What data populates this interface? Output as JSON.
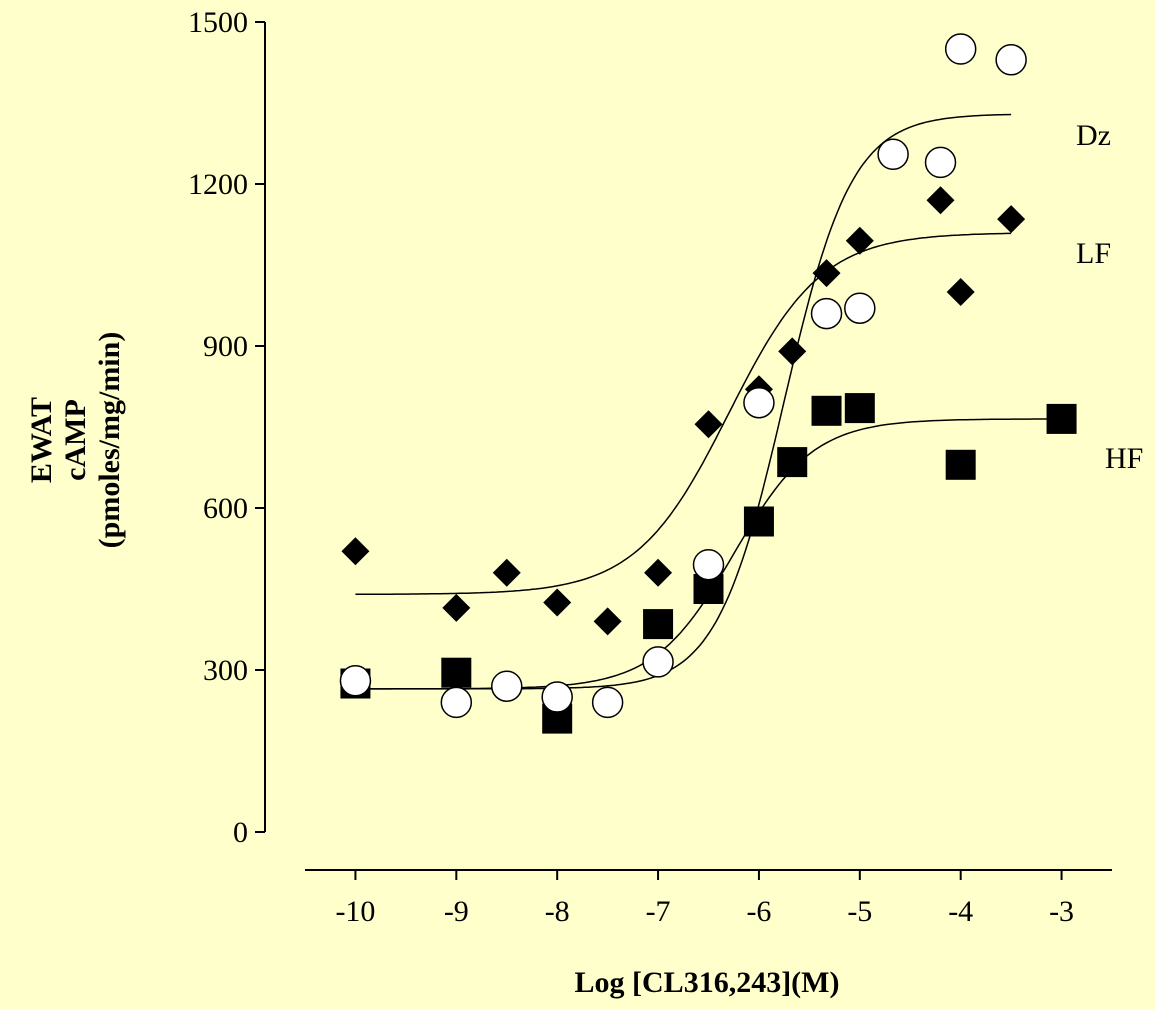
{
  "chart_data": {
    "type": "scatter",
    "title": "",
    "xlabel": "Log [CL316,243](M)",
    "ylabel_lines": [
      "EWAT",
      "cAMP",
      "(pmoles/mg/min)"
    ],
    "xlim": [
      -10.5,
      -2.5
    ],
    "ylim": [
      0,
      1500
    ],
    "xticks": [
      -10,
      -9,
      -8,
      -7,
      -6,
      -5,
      -4,
      -3
    ],
    "yticks": [
      0,
      300,
      600,
      900,
      1200,
      1500
    ],
    "grid": false,
    "legend": "none",
    "series": [
      {
        "name": "Dz",
        "marker": "circle",
        "points": [
          {
            "x": -10,
            "y": 280
          },
          {
            "x": -9,
            "y": 240
          },
          {
            "x": -8.5,
            "y": 270
          },
          {
            "x": -8,
            "y": 250
          },
          {
            "x": -7.5,
            "y": 240
          },
          {
            "x": -7,
            "y": 315
          },
          {
            "x": -6.5,
            "y": 495
          },
          {
            "x": -6,
            "y": 795
          },
          {
            "x": -5.33,
            "y": 960
          },
          {
            "x": -5,
            "y": 970
          },
          {
            "x": -4.67,
            "y": 1255
          },
          {
            "x": -4.2,
            "y": 1240
          },
          {
            "x": -4,
            "y": 1450
          },
          {
            "x": -3.5,
            "y": 1430
          }
        ],
        "fit": {
          "bottom": 265,
          "top": 1330,
          "logec50": -5.75,
          "hill": 1.3,
          "xrange": [
            -10,
            -3.5
          ]
        }
      },
      {
        "name": "LF",
        "marker": "diamond",
        "points": [
          {
            "x": -10,
            "y": 520
          },
          {
            "x": -9,
            "y": 415
          },
          {
            "x": -8.5,
            "y": 480
          },
          {
            "x": -8,
            "y": 425
          },
          {
            "x": -7.5,
            "y": 390
          },
          {
            "x": -7,
            "y": 480
          },
          {
            "x": -6.5,
            "y": 755
          },
          {
            "x": -6,
            "y": 820
          },
          {
            "x": -5.67,
            "y": 890
          },
          {
            "x": -5.33,
            "y": 1035
          },
          {
            "x": -5,
            "y": 1095
          },
          {
            "x": -4.2,
            "y": 1170
          },
          {
            "x": -4,
            "y": 1000
          },
          {
            "x": -3.5,
            "y": 1135
          }
        ],
        "fit": {
          "bottom": 440,
          "top": 1110,
          "logec50": -6.3,
          "hill": 0.95,
          "xrange": [
            -10,
            -3.5
          ]
        }
      },
      {
        "name": "HF",
        "marker": "square",
        "points": [
          {
            "x": -10,
            "y": 275
          },
          {
            "x": -9,
            "y": 295
          },
          {
            "x": -8,
            "y": 210
          },
          {
            "x": -7,
            "y": 385
          },
          {
            "x": -6.5,
            "y": 450
          },
          {
            "x": -6,
            "y": 575
          },
          {
            "x": -5.67,
            "y": 685
          },
          {
            "x": -5.33,
            "y": 780
          },
          {
            "x": -5,
            "y": 785
          },
          {
            "x": -4,
            "y": 680
          },
          {
            "x": -3,
            "y": 765
          }
        ],
        "fit": {
          "bottom": 265,
          "top": 765,
          "logec50": -6.25,
          "hill": 1.1,
          "xrange": [
            -10,
            -3
          ]
        }
      }
    ]
  }
}
